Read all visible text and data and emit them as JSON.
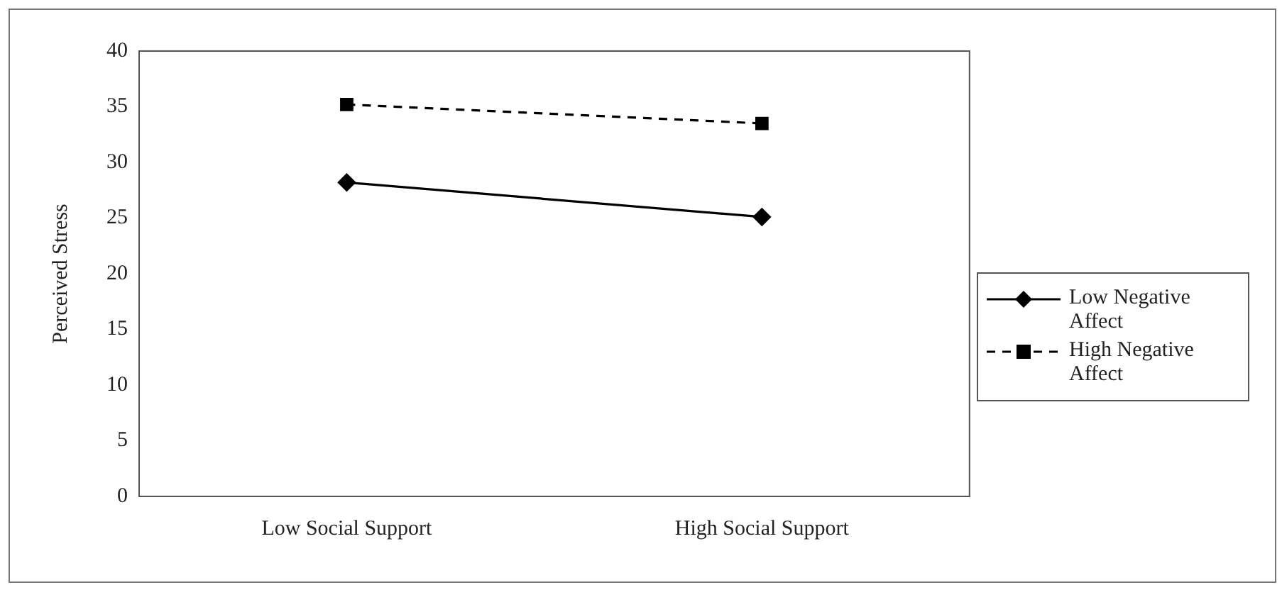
{
  "chart_data": {
    "type": "line",
    "ylabel": "Perceived Stress",
    "categories": [
      "Low Social Support",
      "High Social Support"
    ],
    "series": [
      {
        "name": "Low Negative Affect",
        "color": "#000000",
        "values": [
          28.2,
          25.1
        ],
        "marker": "diamond",
        "line_style": "solid"
      },
      {
        "name": "High Negative Affect",
        "color": "#000000",
        "values": [
          35.2,
          33.5
        ],
        "marker": "square",
        "line_style": "dashed"
      }
    ],
    "ylim": [
      0,
      40
    ],
    "yticks": [
      0,
      5,
      10,
      15,
      20,
      25,
      30,
      35,
      40
    ],
    "grid": false,
    "legend": "right"
  }
}
